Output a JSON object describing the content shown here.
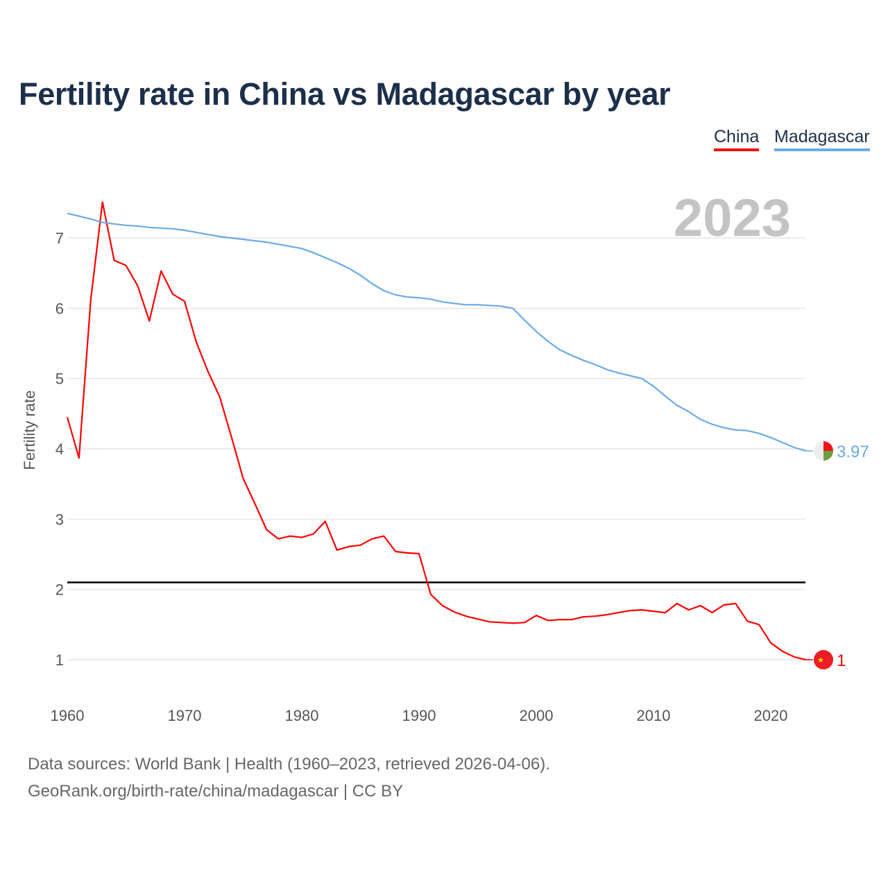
{
  "title": "Fertility rate in China vs Madagascar by year",
  "legend": [
    {
      "label": "China",
      "color": "#ff0000"
    },
    {
      "label": "Madagascar",
      "color": "#6aaae8"
    }
  ],
  "year_watermark": "2023",
  "footer": {
    "line1": "Data sources: World Bank | Health (1960–2023, retrieved 2026-04-06).",
    "line2": "GeoRank.org/birth-rate/china/madagascar | CC BY"
  },
  "chart_data": {
    "type": "line",
    "title": "Fertility rate in China vs Madagascar by year",
    "xlabel": "",
    "ylabel": "Fertility rate",
    "xlim": [
      1960,
      2023
    ],
    "ylim": [
      0.4,
      7.6
    ],
    "xticks": [
      "1960",
      "1970",
      "1980",
      "1990",
      "2000",
      "2010",
      "2020"
    ],
    "yticks": [
      "1",
      "2",
      "3",
      "4",
      "5",
      "6",
      "7"
    ],
    "grid": true,
    "legend_position": "top-right",
    "reference_line": 2.1,
    "x": [
      1960,
      1961,
      1962,
      1963,
      1964,
      1965,
      1966,
      1967,
      1968,
      1969,
      1970,
      1971,
      1972,
      1973,
      1974,
      1975,
      1976,
      1977,
      1978,
      1979,
      1980,
      1981,
      1982,
      1983,
      1984,
      1985,
      1986,
      1987,
      1988,
      1989,
      1990,
      1991,
      1992,
      1993,
      1994,
      1995,
      1996,
      1997,
      1998,
      1999,
      2000,
      2001,
      2002,
      2003,
      2004,
      2005,
      2006,
      2007,
      2008,
      2009,
      2010,
      2011,
      2012,
      2013,
      2014,
      2015,
      2016,
      2017,
      2018,
      2019,
      2020,
      2021,
      2022,
      2023
    ],
    "series": [
      {
        "name": "China",
        "color": "#ff0000",
        "end_label": "1",
        "flag": "china",
        "values": [
          4.45,
          3.87,
          6.12,
          7.51,
          6.68,
          6.61,
          6.32,
          5.82,
          6.53,
          6.2,
          6.1,
          5.52,
          5.1,
          4.74,
          4.17,
          3.58,
          3.22,
          2.85,
          2.72,
          2.76,
          2.74,
          2.79,
          2.97,
          2.56,
          2.61,
          2.63,
          2.72,
          2.76,
          2.54,
          2.52,
          2.51,
          1.93,
          1.77,
          1.68,
          1.62,
          1.58,
          1.54,
          1.53,
          1.52,
          1.53,
          1.63,
          1.56,
          1.57,
          1.57,
          1.61,
          1.62,
          1.64,
          1.67,
          1.7,
          1.71,
          1.69,
          1.67,
          1.8,
          1.71,
          1.77,
          1.67,
          1.78,
          1.8,
          1.55,
          1.5,
          1.24,
          1.12,
          1.04,
          1.0
        ]
      },
      {
        "name": "Madagascar",
        "color": "#6aaae8",
        "end_label": "3.97",
        "flag": "madagascar",
        "values": [
          7.35,
          7.31,
          7.27,
          7.22,
          7.2,
          7.18,
          7.17,
          7.15,
          7.14,
          7.13,
          7.11,
          7.08,
          7.05,
          7.02,
          7.0,
          6.98,
          6.96,
          6.94,
          6.91,
          6.88,
          6.85,
          6.79,
          6.72,
          6.65,
          6.57,
          6.47,
          6.35,
          6.25,
          6.19,
          6.16,
          6.15,
          6.13,
          6.09,
          6.07,
          6.05,
          6.05,
          6.04,
          6.03,
          6.0,
          5.83,
          5.67,
          5.53,
          5.41,
          5.33,
          5.26,
          5.2,
          5.13,
          5.08,
          5.04,
          5.0,
          4.89,
          4.75,
          4.62,
          4.53,
          4.42,
          4.35,
          4.3,
          4.27,
          4.26,
          4.22,
          4.16,
          4.09,
          4.02,
          3.97
        ]
      }
    ]
  }
}
